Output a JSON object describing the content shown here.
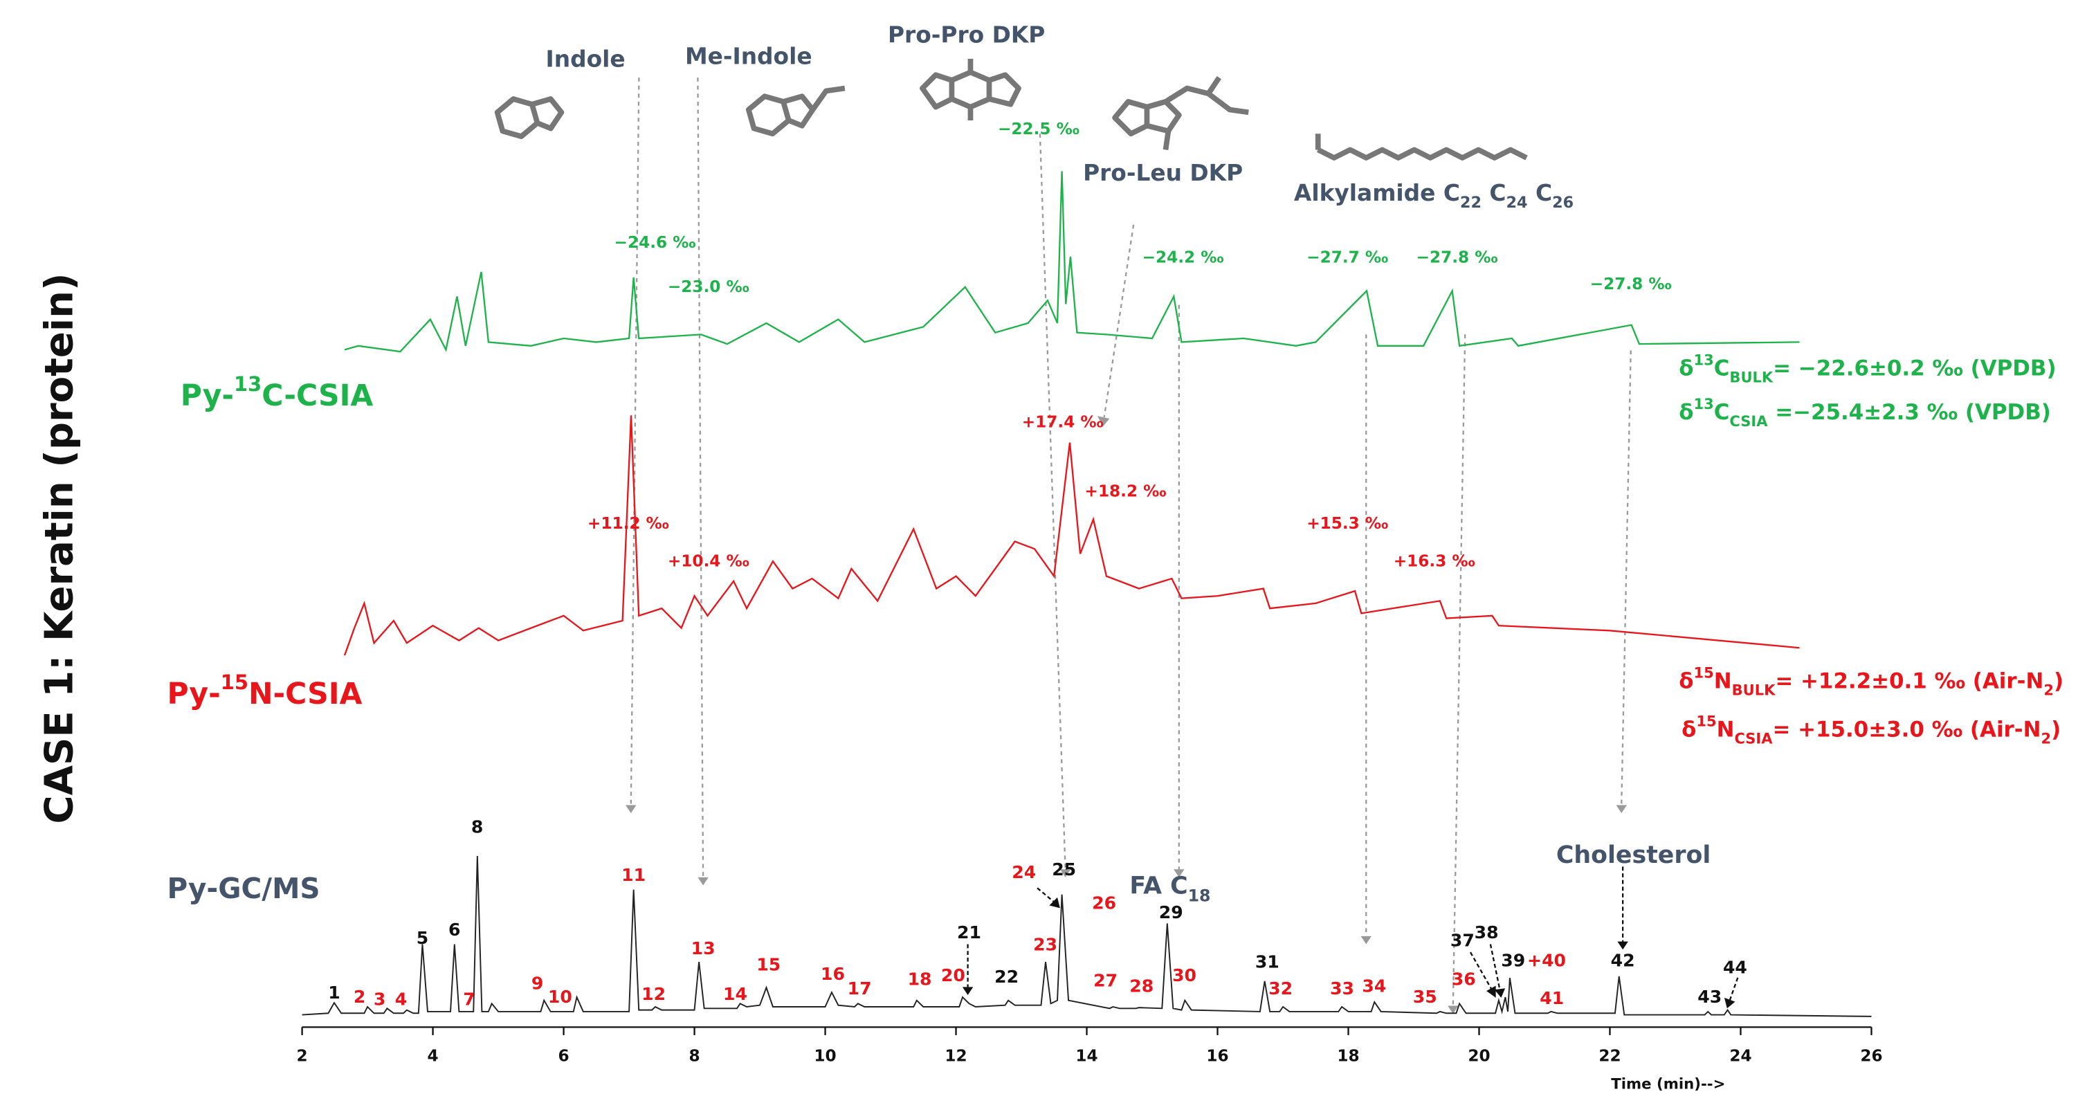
{
  "chart_data": {
    "type": "chromatogram",
    "side_title": "CASE 1: Keratin (protein)",
    "x_label": "Time (min)-->",
    "xlim": [
      2,
      26
    ],
    "xticks": [
      2,
      4,
      6,
      8,
      10,
      12,
      14,
      16,
      18,
      20,
      22,
      24,
      26
    ],
    "compounds": [
      "Indole",
      "Me-Indole",
      "Pro-Pro DKP",
      "Pro-Leu DKP"
    ],
    "alkylamide": [
      "Alkylamide C",
      "22",
      " C",
      "24",
      " C",
      "26"
    ],
    "gc_labels": {
      "fa": [
        "FA C",
        "18"
      ],
      "cholesterol": "Cholesterol"
    },
    "series": [
      {
        "label_parts": [
          "Py-",
          "13",
          "C-CSIA"
        ],
        "color": "#1db34a",
        "ylim": [
          0,
          100
        ],
        "x": [
          2.65,
          2.86,
          3.5,
          3.96,
          4.2,
          4.37,
          4.5,
          4.74,
          4.85,
          5.5,
          6.0,
          6.5,
          7.0,
          7.07,
          7.15,
          8.1,
          8.5,
          9.1,
          9.6,
          10.2,
          10.6,
          11.5,
          12.14,
          12.6,
          13.1,
          13.4,
          13.55,
          13.62,
          13.68,
          13.75,
          13.85,
          14.3,
          15.0,
          15.33,
          15.45,
          16.4,
          17.2,
          17.5,
          18.28,
          18.45,
          19.15,
          19.59,
          19.7,
          20.5,
          20.6,
          22.33,
          22.45,
          24.9
        ],
        "values": [
          6,
          8,
          5,
          22,
          6,
          34,
          8,
          47,
          10,
          8,
          12,
          10,
          12,
          44,
          12,
          14,
          9,
          20,
          10,
          22,
          10,
          18,
          39,
          15,
          20,
          32,
          20,
          100,
          30,
          55,
          15,
          14,
          12,
          34,
          10,
          12,
          8,
          10,
          37,
          8,
          8,
          37,
          8,
          12,
          8,
          19,
          9,
          10
        ]
      },
      {
        "label_parts": [
          "Py-",
          "15",
          "N-CSIA"
        ],
        "color": "#e8151b",
        "ylim": [
          0,
          100
        ],
        "x": [
          2.65,
          2.8,
          2.95,
          3.1,
          3.4,
          3.6,
          4.0,
          4.4,
          4.7,
          5.0,
          5.5,
          6.0,
          6.3,
          6.9,
          7.03,
          7.15,
          7.5,
          7.8,
          8.0,
          8.2,
          8.6,
          8.8,
          9.2,
          9.5,
          9.8,
          10.2,
          10.4,
          10.8,
          11.35,
          11.7,
          12.0,
          12.3,
          12.9,
          13.2,
          13.5,
          13.74,
          13.9,
          14.1,
          14.3,
          14.8,
          15.3,
          15.45,
          16.0,
          16.7,
          16.8,
          17.5,
          18.1,
          18.2,
          19.4,
          19.5,
          20.2,
          20.3,
          22.0,
          24.9
        ],
        "values": [
          0,
          11,
          21,
          5,
          14,
          5,
          12,
          6,
          11,
          6,
          11,
          16,
          10,
          14,
          97,
          16,
          19,
          11,
          24,
          16,
          30,
          19,
          38,
          27,
          31,
          23,
          35,
          22,
          51,
          27,
          32,
          24,
          46,
          43,
          32,
          86,
          41,
          55,
          32,
          27,
          31,
          23,
          24,
          27,
          19,
          21,
          26,
          17,
          22,
          15,
          16,
          12,
          10,
          3
        ]
      },
      {
        "label_parts": [
          "Py-GC/MS"
        ],
        "color": "#222222",
        "ylim": [
          0,
          100
        ],
        "x": [
          2.0,
          2.4,
          2.49,
          2.6,
          2.95,
          3.0,
          3.1,
          3.25,
          3.3,
          3.4,
          3.55,
          3.6,
          3.7,
          3.78,
          3.84,
          3.92,
          4.27,
          4.33,
          4.4,
          4.62,
          4.68,
          4.75,
          4.85,
          4.9,
          5.0,
          5.65,
          5.7,
          5.8,
          6.15,
          6.2,
          6.3,
          7.0,
          7.07,
          7.15,
          7.35,
          7.4,
          7.5,
          8.0,
          8.07,
          8.15,
          8.65,
          8.7,
          8.8,
          9.0,
          9.1,
          9.2,
          10.0,
          10.1,
          10.2,
          10.45,
          10.5,
          10.6,
          11.35,
          11.4,
          11.5,
          12.05,
          12.1,
          12.2,
          12.3,
          12.75,
          12.8,
          12.9,
          13.3,
          13.37,
          13.45,
          13.55,
          13.62,
          13.72,
          14.35,
          14.4,
          14.5,
          14.75,
          14.8,
          15.15,
          15.23,
          15.32,
          15.45,
          15.5,
          15.6,
          16.65,
          16.72,
          16.8,
          16.95,
          17.0,
          17.1,
          17.85,
          17.9,
          18.0,
          18.35,
          18.4,
          18.5,
          19.35,
          19.4,
          19.5,
          19.65,
          19.7,
          19.8,
          20.25,
          20.3,
          20.35,
          20.4,
          20.44,
          20.47,
          20.55,
          21.05,
          21.1,
          21.2,
          22.08,
          22.14,
          22.22,
          23.45,
          23.5,
          23.55,
          23.75,
          23.8,
          23.85,
          26.0
        ],
        "values": [
          1,
          2,
          8.5,
          2,
          2,
          6,
          2,
          2,
          5,
          2,
          2,
          4,
          2,
          2,
          45,
          3,
          3,
          45,
          3,
          3,
          100,
          3,
          3,
          8,
          3,
          3,
          10,
          3,
          3,
          12,
          3,
          3,
          79,
          4,
          4,
          6,
          4,
          4,
          34,
          5,
          5,
          8,
          6,
          7,
          18,
          6,
          6,
          15,
          7,
          6,
          8,
          6,
          6,
          10,
          6,
          6,
          12,
          8,
          6,
          7,
          10,
          7,
          7,
          34,
          8,
          10,
          76,
          10,
          5,
          6,
          5,
          5,
          5.5,
          5,
          58,
          5,
          4,
          10,
          4,
          3,
          22,
          3,
          3,
          6,
          3,
          3,
          6,
          3,
          3,
          9,
          3,
          2,
          3,
          2,
          2,
          8,
          2,
          2,
          10,
          3,
          12,
          3,
          24,
          2,
          2,
          3,
          2,
          2,
          25,
          1,
          1,
          3,
          1,
          1,
          4,
          1,
          0
        ]
      }
    ],
    "csia_annotations": [
      {
        "text": "−24.6 ‰",
        "color": "#1db34a"
      },
      {
        "text": "−23.0 ‰",
        "color": "#1db34a"
      },
      {
        "text": "−22.5 ‰",
        "color": "#1db34a"
      },
      {
        "text": "−24.2 ‰",
        "color": "#1db34a"
      },
      {
        "text": "−27.7 ‰",
        "color": "#1db34a"
      },
      {
        "text": "−27.8 ‰",
        "color": "#1db34a"
      },
      {
        "text": "−27.8 ‰",
        "color": "#1db34a"
      },
      {
        "text": "+17.4 ‰",
        "color": "#e8151b"
      },
      {
        "text": "+18.2 ‰",
        "color": "#e8151b"
      },
      {
        "text": "+11.2 ‰",
        "color": "#e8151b"
      },
      {
        "text": "+10.4 ‰",
        "color": "#e8151b"
      },
      {
        "text": "+15.3 ‰",
        "color": "#e8151b"
      },
      {
        "text": "+16.3 ‰",
        "color": "#e8151b"
      }
    ],
    "bulk": [
      {
        "parts": [
          "δ",
          "13",
          "C",
          "BULK",
          "= −22.6±0.2 ‰ (VPDB)"
        ],
        "color": "#1db34a"
      },
      {
        "parts": [
          "δ",
          "13",
          "C",
          "CSIA",
          " =−25.4±2.3 ‰ (VPDB)"
        ],
        "color": "#1db34a"
      },
      {
        "parts": [
          "δ",
          "15",
          "N",
          "BULK",
          "= +12.2±0.1 ‰ (Air-N",
          "2",
          ")"
        ],
        "color": "#e8151b"
      },
      {
        "parts": [
          "δ",
          "15",
          "N",
          "CSIA",
          "= +15.0±3.0 ‰ (Air-N",
          "2",
          ")"
        ],
        "color": "#e8151b"
      }
    ],
    "peak_labels": [
      {
        "text": "1",
        "color": "#111111"
      },
      {
        "text": "2",
        "color": "#e8151b"
      },
      {
        "text": "3",
        "color": "#e8151b"
      },
      {
        "text": "4",
        "color": "#e8151b"
      },
      {
        "text": "5",
        "color": "#111111"
      },
      {
        "text": "6",
        "color": "#111111"
      },
      {
        "text": "7",
        "color": "#e8151b"
      },
      {
        "text": "8",
        "color": "#111111"
      },
      {
        "text": "9",
        "color": "#e8151b"
      },
      {
        "text": "10",
        "color": "#e8151b"
      },
      {
        "text": "11",
        "color": "#e8151b"
      },
      {
        "text": "12",
        "color": "#e8151b"
      },
      {
        "text": "13",
        "color": "#e8151b"
      },
      {
        "text": "14",
        "color": "#e8151b"
      },
      {
        "text": "15",
        "color": "#e8151b"
      },
      {
        "text": "16",
        "color": "#e8151b"
      },
      {
        "text": "17",
        "color": "#e8151b"
      },
      {
        "text": "18",
        "color": "#e8151b"
      },
      {
        "text": "20",
        "color": "#e8151b"
      },
      {
        "text": "21",
        "color": "#111111"
      },
      {
        "text": "22",
        "color": "#111111"
      },
      {
        "text": "23",
        "color": "#e8151b"
      },
      {
        "text": "24",
        "color": "#e8151b"
      },
      {
        "text": "25",
        "color": "#111111"
      },
      {
        "text": "26",
        "color": "#e8151b"
      },
      {
        "text": "27",
        "color": "#e8151b"
      },
      {
        "text": "28",
        "color": "#e8151b"
      },
      {
        "text": "29",
        "color": "#111111"
      },
      {
        "text": "30",
        "color": "#e8151b"
      },
      {
        "text": "31",
        "color": "#111111"
      },
      {
        "text": "32",
        "color": "#e8151b"
      },
      {
        "text": "33",
        "color": "#e8151b"
      },
      {
        "text": "34",
        "color": "#e8151b"
      },
      {
        "text": "35",
        "color": "#e8151b"
      },
      {
        "text": "36",
        "color": "#e8151b"
      },
      {
        "text": "37",
        "color": "#111111"
      },
      {
        "text": "38",
        "color": "#111111"
      },
      {
        "text": "39",
        "color": "#111111"
      },
      {
        "text": "+40",
        "color": "#e8151b"
      },
      {
        "text": "41",
        "color": "#e8151b"
      },
      {
        "text": "42",
        "color": "#111111"
      },
      {
        "text": "43",
        "color": "#111111"
      },
      {
        "text": "44",
        "color": "#111111"
      }
    ]
  }
}
